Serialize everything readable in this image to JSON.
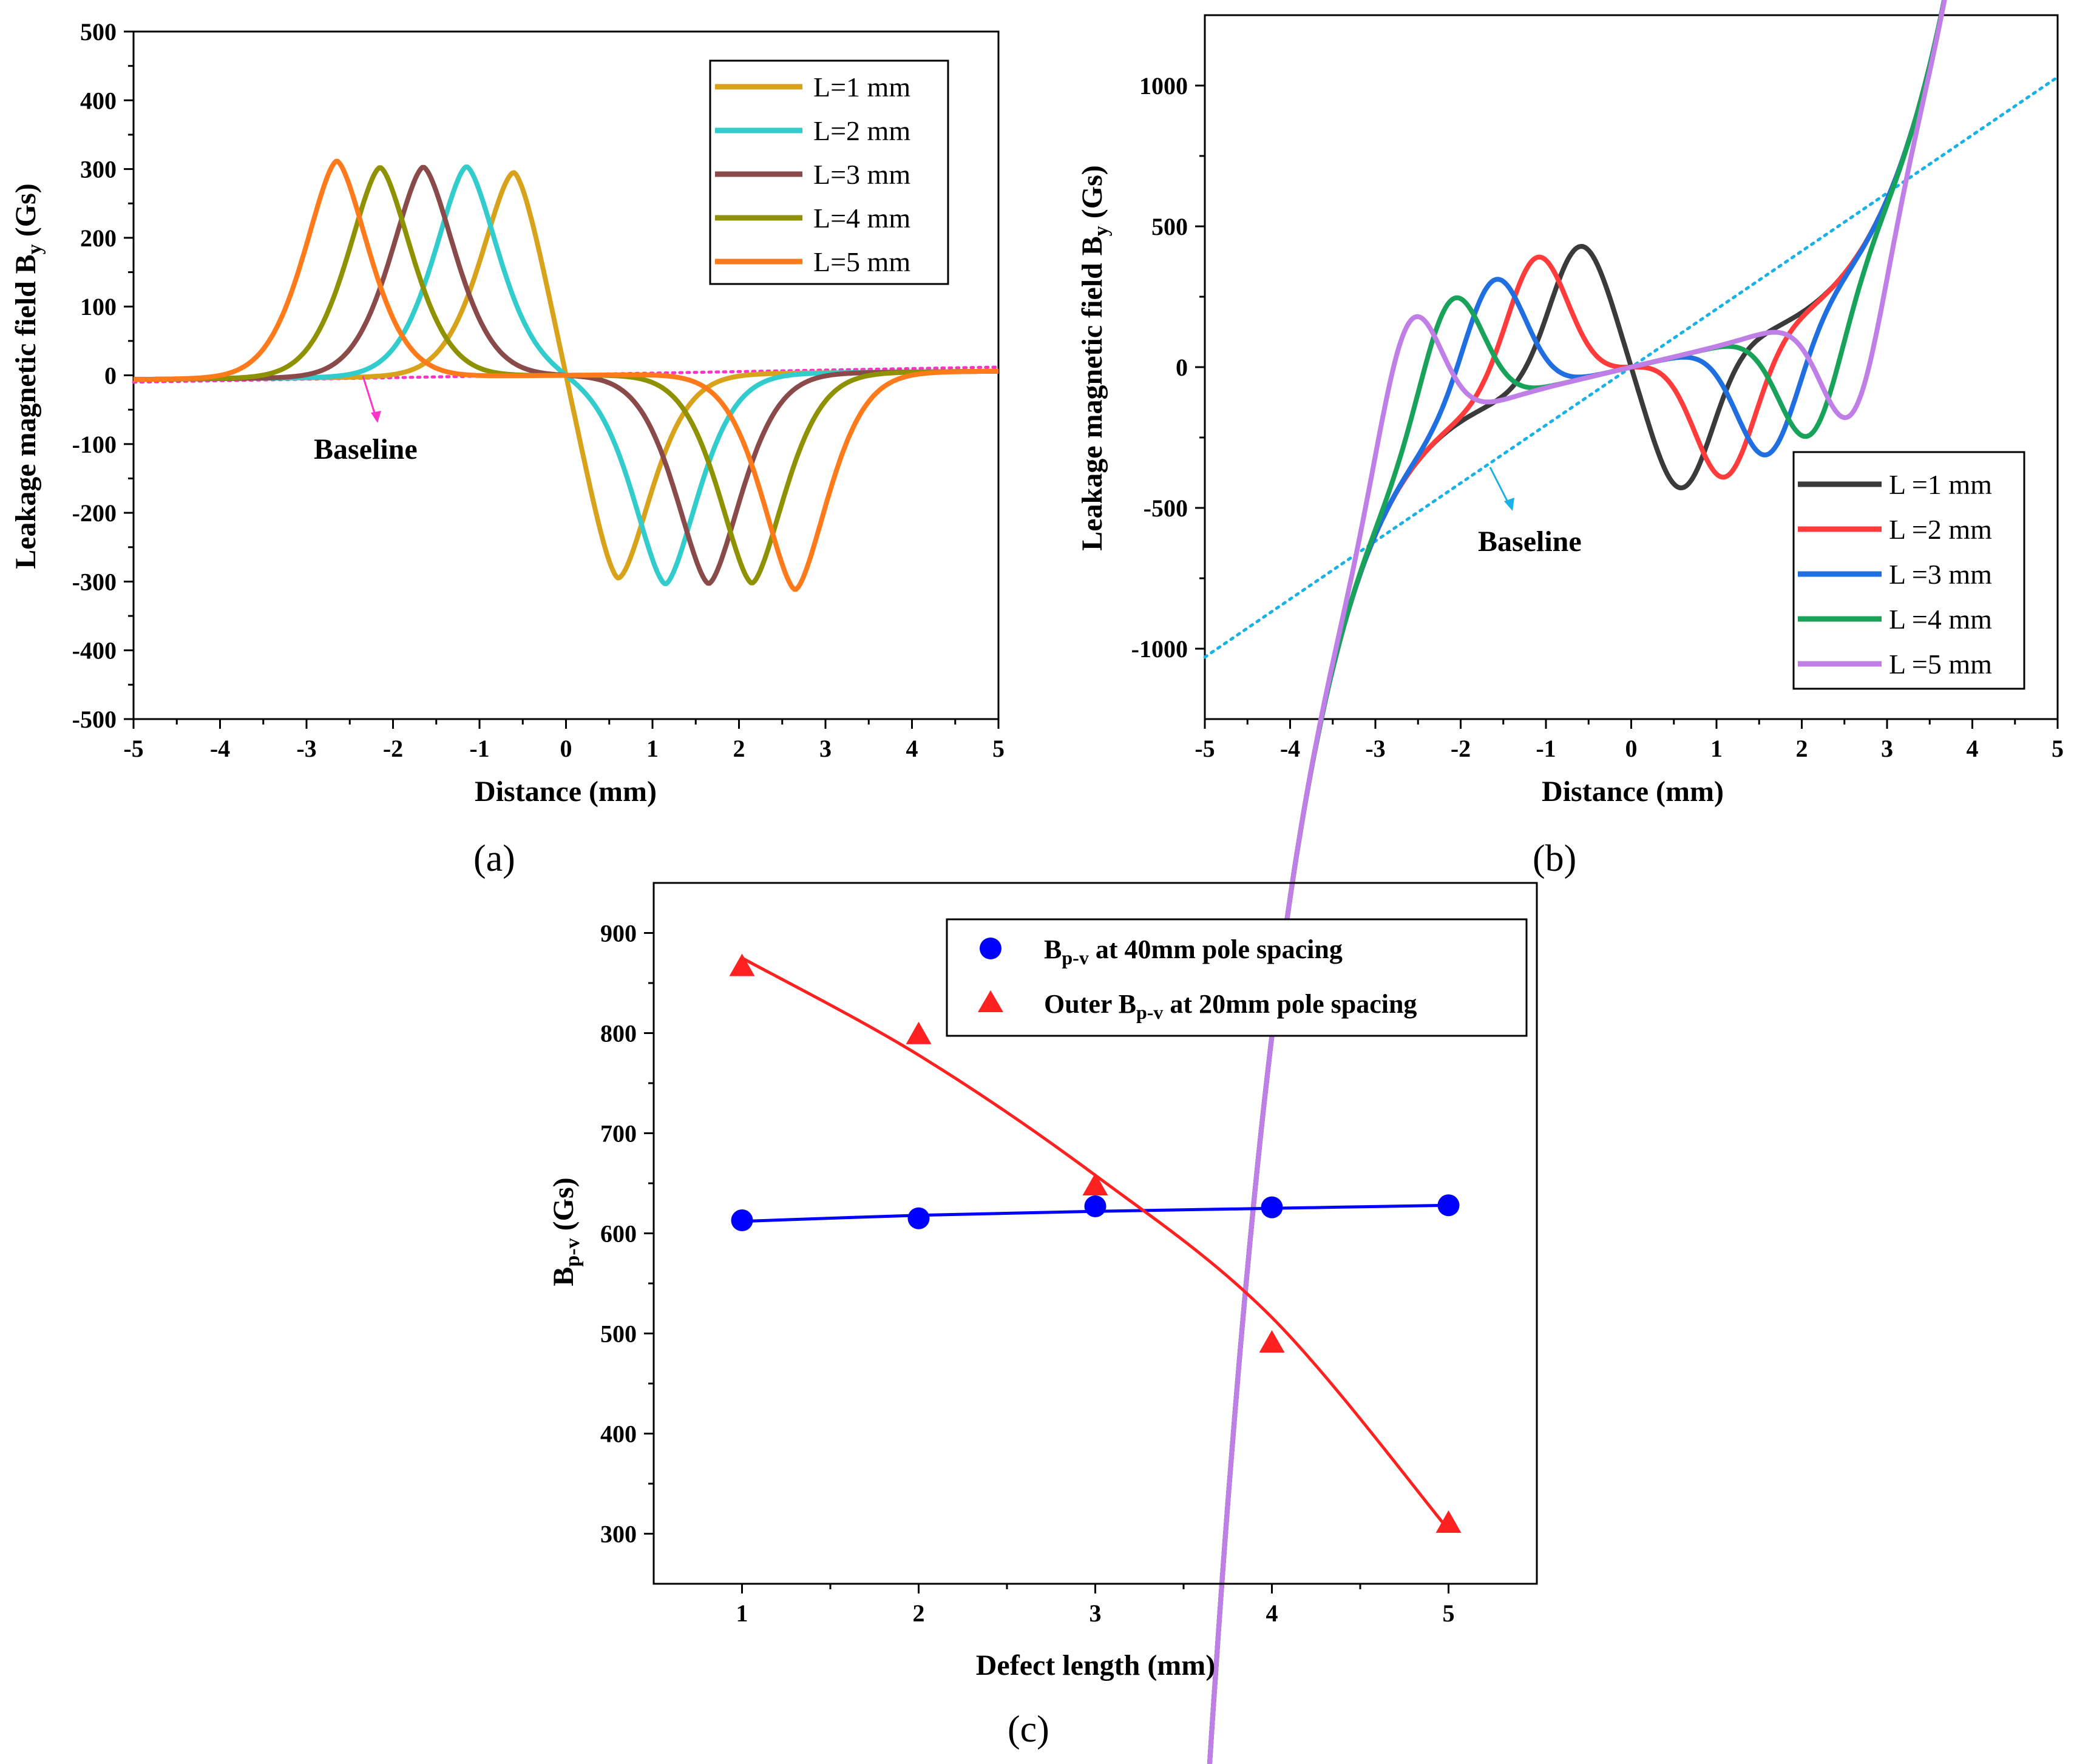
{
  "colors": {
    "a": [
      "#D9A21B",
      "#33CCCC",
      "#8B4A4A",
      "#8F9200",
      "#FF7A1A"
    ],
    "b": [
      "#3A3A3A",
      "#FF3B3B",
      "#1F6FE0",
      "#19A35A",
      "#BF7FE6"
    ],
    "baseline_a": "#FF33CC",
    "baseline_b": "#1AB2E6",
    "c_series1": "#0000FF",
    "c_series2": "#FF2020"
  },
  "panel_labels": {
    "a": "(a)",
    "b": "(b)",
    "c": "(c)"
  },
  "chart_data": [
    {
      "id": "a",
      "type": "line",
      "xlabel": "Distance (mm)",
      "ylabel": "Leakage magnetic field B",
      "ylabel_sub": "y",
      "ylabel_unit": " (Gs)",
      "xlim": [
        -5,
        5
      ],
      "ylim": [
        -500,
        500
      ],
      "xticks": [
        -5,
        -4,
        -3,
        -2,
        -1,
        0,
        1,
        2,
        3,
        4,
        5
      ],
      "yticks": [
        -500,
        -400,
        -300,
        -200,
        -100,
        0,
        100,
        200,
        300,
        400,
        500
      ],
      "legend_position": "top-right",
      "annotation": "Baseline",
      "series": [
        {
          "name": "L=1 mm",
          "peak_x": 0.6,
          "peak_y": 305
        },
        {
          "name": "L=2 mm",
          "peak_x": 1.15,
          "peak_y": 305
        },
        {
          "name": "L=3 mm",
          "peak_x": 1.65,
          "peak_y": 305
        },
        {
          "name": "L=4 mm",
          "peak_x": 2.15,
          "peak_y": 305
        },
        {
          "name": "L=5 mm",
          "peak_x": 2.65,
          "peak_y": 315
        }
      ],
      "baseline": {
        "x": [
          -5,
          5
        ],
        "y": [
          -10,
          12
        ]
      }
    },
    {
      "id": "b",
      "type": "line",
      "xlabel": "Distance (mm)",
      "ylabel": "Leakage magnetic field B",
      "ylabel_sub": "y",
      "ylabel_unit": " (Gs)",
      "xlim": [
        -5,
        5
      ],
      "ylim": [
        -1250,
        1250
      ],
      "xticks": [
        -5,
        -4,
        -3,
        -2,
        -1,
        0,
        1,
        2,
        3,
        4,
        5
      ],
      "yticks": [
        -1000,
        -500,
        0,
        500,
        1000
      ],
      "legend_position": "bottom-right",
      "annotation": "Baseline",
      "series": [
        {
          "name": "L =1 mm",
          "peak_x": 0.6,
          "peak_y": 430
        },
        {
          "name": "L =2 mm",
          "peak_x": 1.1,
          "peak_y": 390
        },
        {
          "name": "L =3 mm",
          "peak_x": 1.6,
          "peak_y": 310
        },
        {
          "name": "L =4 mm",
          "peak_x": 2.1,
          "peak_y": 240
        },
        {
          "name": "L =5 mm",
          "peak_x": 2.6,
          "peak_y": 160
        }
      ],
      "baseline": {
        "x": [
          -5,
          5
        ],
        "y": [
          -1030,
          1030
        ]
      }
    },
    {
      "id": "c",
      "type": "scatter",
      "xlabel": "Defect length (mm)",
      "ylabel": "B",
      "ylabel_sub": "p-v",
      "ylabel_unit": " (Gs)",
      "xlim": [
        0.5,
        5.5
      ],
      "ylim": [
        250,
        950
      ],
      "xticks": [
        1,
        2,
        3,
        4,
        5
      ],
      "yticks": [
        300,
        400,
        500,
        600,
        700,
        800,
        900
      ],
      "legend_position": "top-right",
      "series": [
        {
          "name_pre": "B",
          "name_sub": "p-v",
          "name_post": " at 40mm pole spacing",
          "marker": "circle",
          "x": [
            1,
            2,
            3,
            4,
            5
          ],
          "y": [
            613,
            615,
            627,
            626,
            628
          ],
          "fit": [
            612,
            618,
            622,
            625,
            628
          ]
        },
        {
          "name_pre": "Outer B",
          "name_sub": "p-v",
          "name_post": " at 20mm pole spacing",
          "marker": "triangle",
          "x": [
            1,
            2,
            3,
            4,
            5
          ],
          "y": [
            866,
            798,
            647,
            490,
            310
          ],
          "fit": [
            875,
            778,
            658,
            516,
            304
          ]
        }
      ]
    }
  ]
}
